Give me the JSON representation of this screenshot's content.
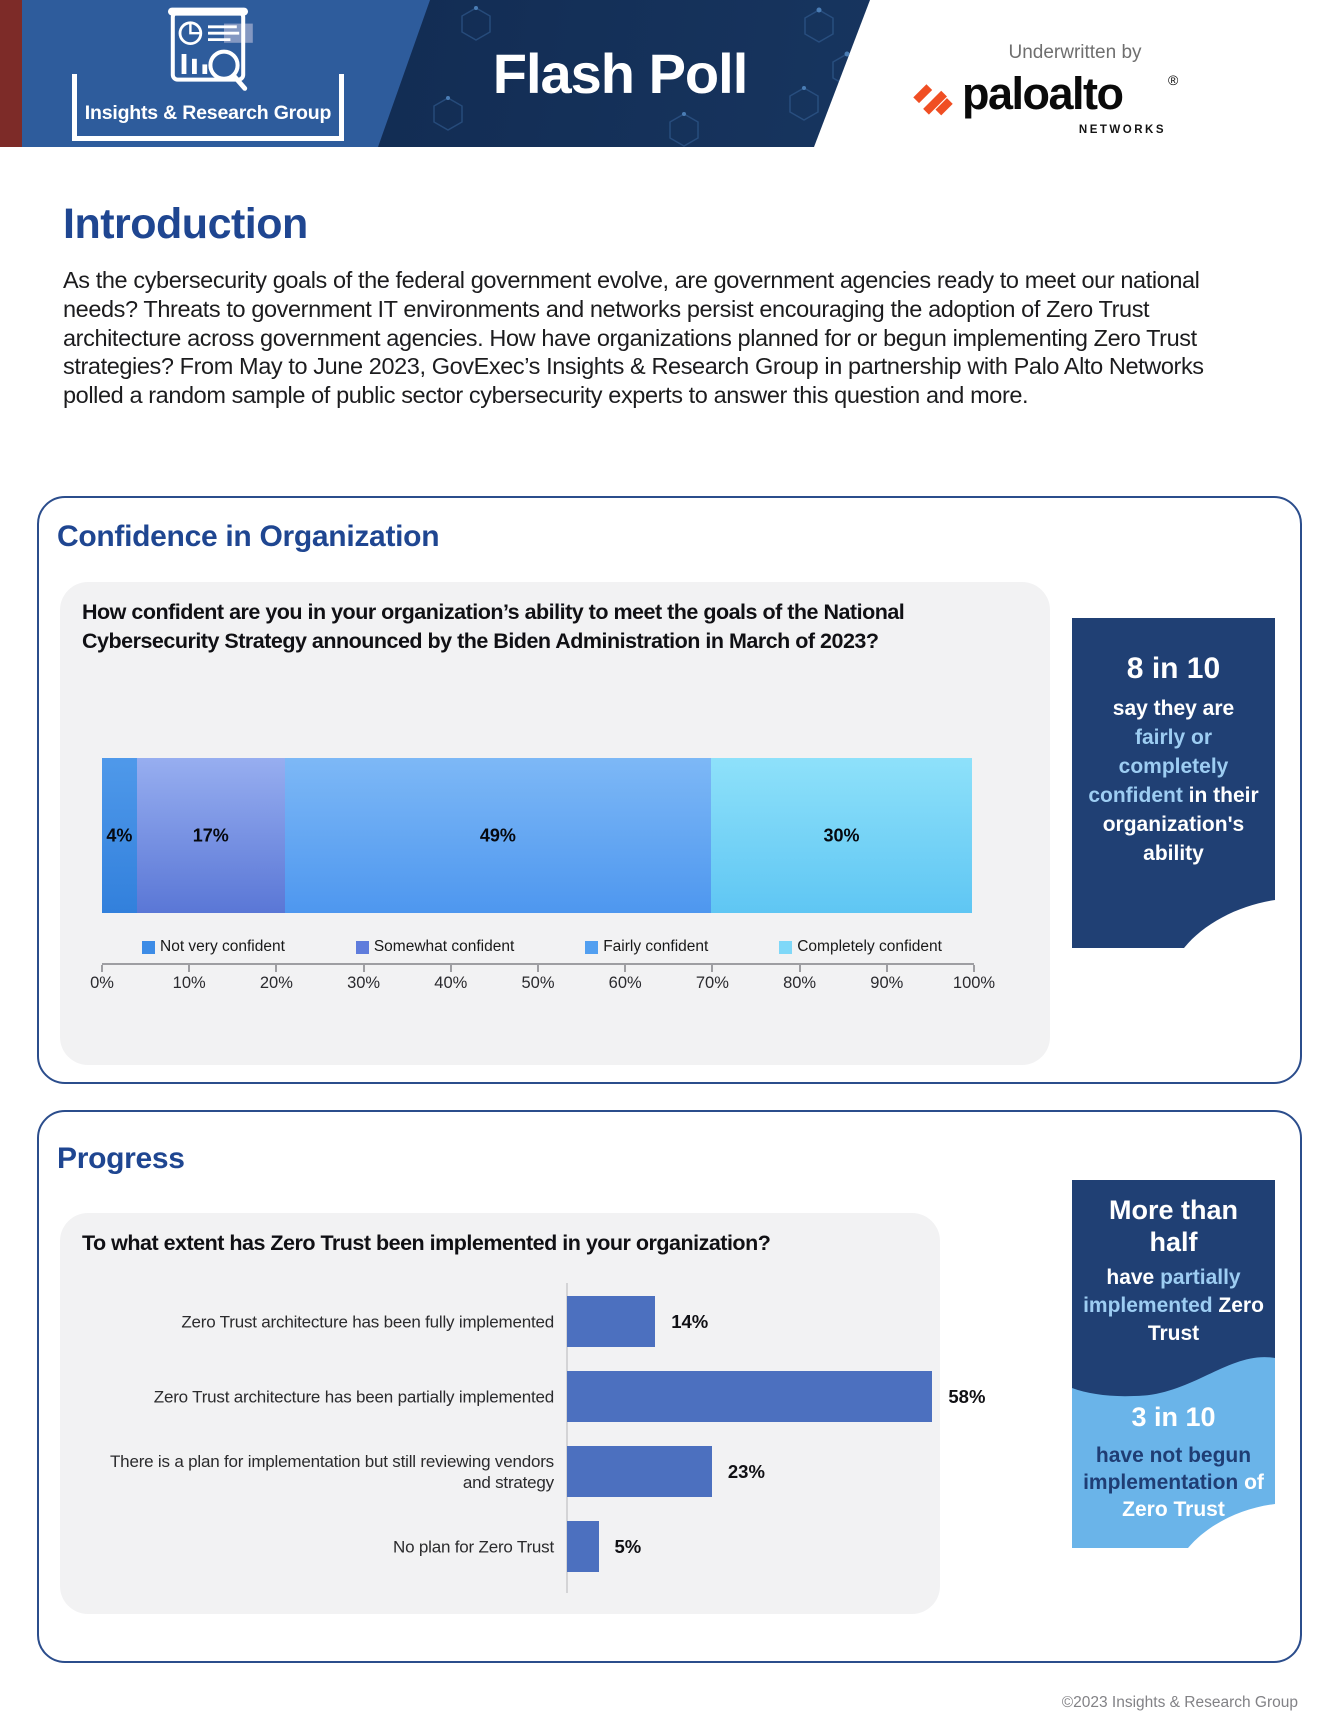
{
  "header": {
    "brand": "Insights & Research Group",
    "title": "Flash Poll",
    "underwritten_by": "Underwritten by",
    "sponsor_name": "paloalto",
    "sponsor_reg": "®",
    "sponsor_sub": "NETWORKS",
    "colors": {
      "red_strip": "#7d2b28",
      "blue_band": "#2e5c9c",
      "navy_band": "#14305a",
      "sponsor_orange": "#f04e23"
    }
  },
  "intro": {
    "heading": "Introduction",
    "body": "As the cybersecurity goals of the federal government evolve, are government agencies ready to meet our national needs? Threats to government IT environments and networks persist encouraging the adoption of Zero Trust architecture across government agencies. How have organizations planned for or begun implementing Zero Trust strategies? From May to June 2023, GovExec’s Insights & Research Group in partnership with Palo Alto Networks polled a random sample of public sector cybersecurity experts to answer this question and more."
  },
  "confidence": {
    "heading": "Confidence in Organization",
    "question": "How confident are you in your organization’s ability to meet the goals of the National Cybersecurity Strategy announced by the Biden Administration in March of 2023?",
    "callout": {
      "title": "8 in 10",
      "segments": [
        {
          "text": "say they are ",
          "em": false
        },
        {
          "text": "fairly or completely confident",
          "em": true
        },
        {
          "text": " in their organization's ability",
          "em": false
        }
      ]
    }
  },
  "progress": {
    "heading": "Progress",
    "question": "To what extent has Zero Trust been implemented in your organization?",
    "callout_top": {
      "title": "More than half",
      "segments": [
        {
          "text": "have ",
          "em": false
        },
        {
          "text": "partially implemented",
          "em": true
        },
        {
          "text": " Zero Trust",
          "em": false
        }
      ]
    },
    "callout_bottom": {
      "title": "3 in 10",
      "segments": [
        {
          "text": "have not begun implementation",
          "em": true
        },
        {
          "text": " of Zero Trust",
          "em": false
        }
      ]
    }
  },
  "chart_data": [
    {
      "type": "bar",
      "variant": "horizontal-stacked",
      "title": "How confident are you in your organization’s ability to meet the goals of the National Cybersecurity Strategy announced by the Biden Administration in March of 2023?",
      "series": [
        {
          "name": "Not very confident",
          "value": 4,
          "label": "4%",
          "color": "#3d8ce6",
          "gradient": [
            "#4f99ea",
            "#3280dc"
          ]
        },
        {
          "name": "Somewhat confident",
          "value": 17,
          "label": "17%",
          "color": "#5f7cdc",
          "gradient": [
            "#97aef0",
            "#5a77d6"
          ]
        },
        {
          "name": "Fairly confident",
          "value": 49,
          "label": "49%",
          "color": "#529ff0",
          "gradient": [
            "#7db8f6",
            "#4e97ef"
          ]
        },
        {
          "name": "Completely confident",
          "value": 30,
          "label": "30%",
          "color": "#7fd8f8",
          "gradient": [
            "#8ee1fa",
            "#5fc6f3"
          ]
        }
      ],
      "xlim": [
        0,
        100
      ],
      "tick_labels": [
        "0%",
        "10%",
        "20%",
        "30%",
        "40%",
        "50%",
        "60%",
        "70%",
        "80%",
        "90%",
        "100%"
      ],
      "legend_position": "bottom",
      "grid": false
    },
    {
      "type": "bar",
      "variant": "horizontal",
      "title": "To what extent has Zero Trust been implemented in your organization?",
      "categories": [
        "Zero Trust architecture has been fully implemented",
        "Zero Trust architecture has been partially implemented",
        "There is a plan for implementation but still reviewing vendors and strategy",
        "No plan for Zero Trust"
      ],
      "values": [
        14,
        58,
        23,
        5
      ],
      "value_labels": [
        "14%",
        "58%",
        "23%",
        "5%"
      ],
      "bar_color": "#4c70bf",
      "xlim": [
        0,
        100
      ],
      "grid": false
    }
  ],
  "footer": {
    "copyright": "©2023 Insights & Research Group"
  }
}
